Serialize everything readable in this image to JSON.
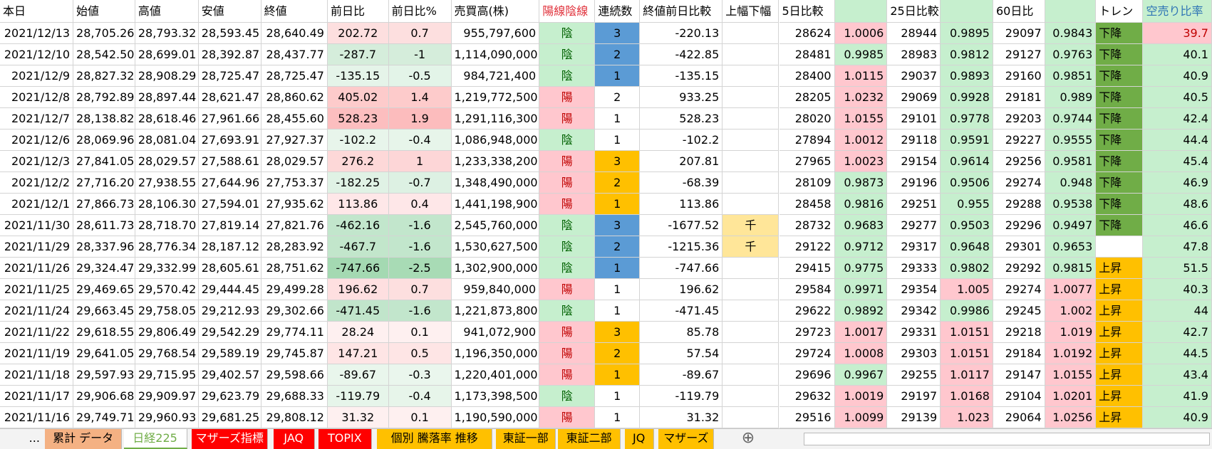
{
  "table": {
    "header": [
      "本日",
      "始値",
      "高値",
      "安値",
      "終値",
      "前日比",
      "前日比%",
      "売買高(株)",
      "陽線陰線",
      "連続数",
      "終値前日比較",
      "上幅下幅",
      "5日比較",
      null,
      "25日比較",
      null,
      "60日比",
      null,
      "トレン",
      "空売り比率"
    ],
    "rows": [
      [
        "2021/12/13",
        "28,705.26",
        "28,793.32",
        "28,593.45",
        "28,640.49",
        "202.72",
        "0.7",
        "955,797,600",
        "陰",
        "3",
        "-220.13",
        null,
        "28624",
        "1.0006",
        "28944",
        "0.9895",
        "29097",
        "0.9843",
        "下降",
        "39.7"
      ],
      [
        "2021/12/10",
        "28,542.50",
        "28,699.01",
        "28,392.87",
        "28,437.77",
        "-287.7",
        "-1",
        "1,114,090,000",
        "陰",
        "2",
        "-422.85",
        null,
        "28481",
        "0.9985",
        "28983",
        "0.9812",
        "29127",
        "0.9763",
        "下降",
        "40.1"
      ],
      [
        "2021/12/9",
        "28,827.32",
        "28,908.29",
        "28,725.47",
        "28,725.47",
        "-135.15",
        "-0.5",
        "984,721,400",
        "陰",
        "1",
        "-135.15",
        null,
        "28400",
        "1.0115",
        "29037",
        "0.9893",
        "29160",
        "0.9851",
        "下降",
        "40.9"
      ],
      [
        "2021/12/8",
        "28,792.89",
        "28,897.44",
        "28,621.47",
        "28,860.62",
        "405.02",
        "1.4",
        "1,219,772,500",
        "陽",
        "2",
        "933.25",
        null,
        "28205",
        "1.0232",
        "29069",
        "0.9928",
        "29181",
        "0.989",
        "下降",
        "40.5"
      ],
      [
        "2021/12/7",
        "28,138.82",
        "28,618.46",
        "27,961.66",
        "28,455.60",
        "528.23",
        "1.9",
        "1,291,116,300",
        "陽",
        "1",
        "528.23",
        null,
        "28020",
        "1.0155",
        "29101",
        "0.9778",
        "29203",
        "0.9744",
        "下降",
        "42.4"
      ],
      [
        "2021/12/6",
        "28,069.96",
        "28,081.04",
        "27,693.91",
        "27,927.37",
        "-102.2",
        "-0.4",
        "1,086,948,000",
        "陰",
        "1",
        "-102.2",
        null,
        "27894",
        "1.0012",
        "29118",
        "0.9591",
        "29227",
        "0.9555",
        "下降",
        "44.4"
      ],
      [
        "2021/12/3",
        "27,841.05",
        "28,029.57",
        "27,588.61",
        "28,029.57",
        "276.2",
        "1",
        "1,233,338,200",
        "陽",
        "3",
        "207.81",
        null,
        "27965",
        "1.0023",
        "29154",
        "0.9614",
        "29256",
        "0.9581",
        "下降",
        "45.4"
      ],
      [
        "2021/12/2",
        "27,716.20",
        "27,938.55",
        "27,644.96",
        "27,753.37",
        "-182.25",
        "-0.7",
        "1,348,490,000",
        "陽",
        "2",
        "-68.39",
        null,
        "28109",
        "0.9873",
        "29196",
        "0.9506",
        "29274",
        "0.948",
        "下降",
        "46.9"
      ],
      [
        "2021/12/1",
        "27,866.73",
        "28,106.30",
        "27,594.01",
        "27,935.62",
        "113.86",
        "0.4",
        "1,441,198,900",
        "陽",
        "1",
        "113.86",
        null,
        "28458",
        "0.9816",
        "29251",
        "0.955",
        "29288",
        "0.9538",
        "下降",
        "48.6"
      ],
      [
        "2021/11/30",
        "28,611.73",
        "28,718.70",
        "27,819.14",
        "27,821.76",
        "-462.16",
        "-1.6",
        "2,545,760,000",
        "陰",
        "3",
        "-1677.52",
        "千",
        "28732",
        "0.9683",
        "29277",
        "0.9503",
        "29296",
        "0.9497",
        "下降",
        "46.6"
      ],
      [
        "2021/11/29",
        "28,337.96",
        "28,776.34",
        "28,187.12",
        "28,283.92",
        "-467.7",
        "-1.6",
        "1,530,627,500",
        "陰",
        "2",
        "-1215.36",
        "千",
        "29122",
        "0.9712",
        "29317",
        "0.9648",
        "29301",
        "0.9653",
        null,
        "47.8"
      ],
      [
        "2021/11/26",
        "29,324.47",
        "29,332.99",
        "28,605.61",
        "28,751.62",
        "-747.66",
        "-2.5",
        "1,302,900,000",
        "陰",
        "1",
        "-747.66",
        null,
        "29415",
        "0.9775",
        "29333",
        "0.9802",
        "29292",
        "0.9815",
        "上昇",
        "51.5"
      ],
      [
        "2021/11/25",
        "29,469.65",
        "29,570.42",
        "29,444.45",
        "29,499.28",
        "196.62",
        "0.7",
        "959,840,000",
        "陽",
        "1",
        "196.62",
        null,
        "29584",
        "0.9971",
        "29354",
        "1.005",
        "29274",
        "1.0077",
        "上昇",
        "40.3"
      ],
      [
        "2021/11/24",
        "29,663.45",
        "29,758.05",
        "29,212.93",
        "29,302.66",
        "-471.45",
        "-1.6",
        "1,221,873,800",
        "陰",
        "1",
        "-471.45",
        null,
        "29622",
        "0.9892",
        "29342",
        "0.9986",
        "29245",
        "1.002",
        "上昇",
        "44"
      ],
      [
        "2021/11/22",
        "29,618.55",
        "29,806.49",
        "29,542.29",
        "29,774.11",
        "28.24",
        "0.1",
        "941,072,900",
        "陽",
        "3",
        "85.78",
        null,
        "29723",
        "1.0017",
        "29331",
        "1.0151",
        "29218",
        "1.019",
        "上昇",
        "42.7"
      ],
      [
        "2021/11/19",
        "29,641.05",
        "29,768.54",
        "29,589.19",
        "29,745.87",
        "147.21",
        "0.5",
        "1,196,350,000",
        "陽",
        "2",
        "57.54",
        null,
        "29724",
        "1.0008",
        "29303",
        "1.0151",
        "29184",
        "1.0192",
        "上昇",
        "44.5"
      ],
      [
        "2021/11/18",
        "29,597.93",
        "29,715.95",
        "29,402.57",
        "29,598.66",
        "-89.67",
        "-0.3",
        "1,220,401,000",
        "陽",
        "1",
        "-89.67",
        null,
        "29696",
        "0.9967",
        "29255",
        "1.0117",
        "29147",
        "1.0155",
        "上昇",
        "43.4"
      ],
      [
        "2021/11/17",
        "29,906.68",
        "29,909.97",
        "29,623.79",
        "29,688.33",
        "-119.79",
        "-0.4",
        "1,173,398,500",
        "陰",
        "1",
        "-119.79",
        null,
        "29632",
        "1.0019",
        "29197",
        "1.0168",
        "29104",
        "1.0201",
        "上昇",
        "41.9"
      ],
      [
        "2021/11/16",
        "29,749.71",
        "29,960.93",
        "29,681.25",
        "29,808.12",
        "31.32",
        "0.1",
        "1,190,590,000",
        "陽",
        "1",
        "31.32",
        null,
        "29516",
        "1.0099",
        "29139",
        "1.023",
        "29064",
        "1.0256",
        "上昇",
        "40.9"
      ]
    ]
  },
  "tabs": [
    "...",
    "累計 データ",
    "日経225",
    "マザーズ指標",
    "JAQ",
    "TOPIX",
    "個別 騰落率 推移",
    "東証一部",
    "東証二部",
    "JQ",
    "マザーズ"
  ]
}
